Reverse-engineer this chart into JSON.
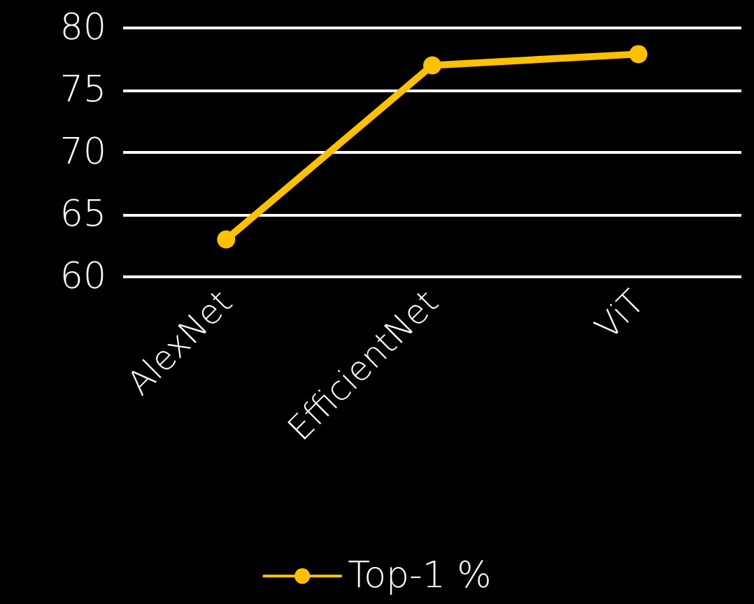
{
  "chart_data": {
    "type": "line",
    "categories": [
      "AlexNet",
      "EfficientNet",
      "ViT"
    ],
    "series": [
      {
        "name": "Top-1 %",
        "color": "#ffc000",
        "values": [
          63,
          77,
          77.9
        ]
      }
    ],
    "ylim": [
      60,
      80
    ],
    "yticks": [
      60,
      65,
      70,
      75,
      80
    ],
    "grid": "y",
    "legend": "bottom",
    "marker": "circle",
    "line_style": "solid"
  }
}
